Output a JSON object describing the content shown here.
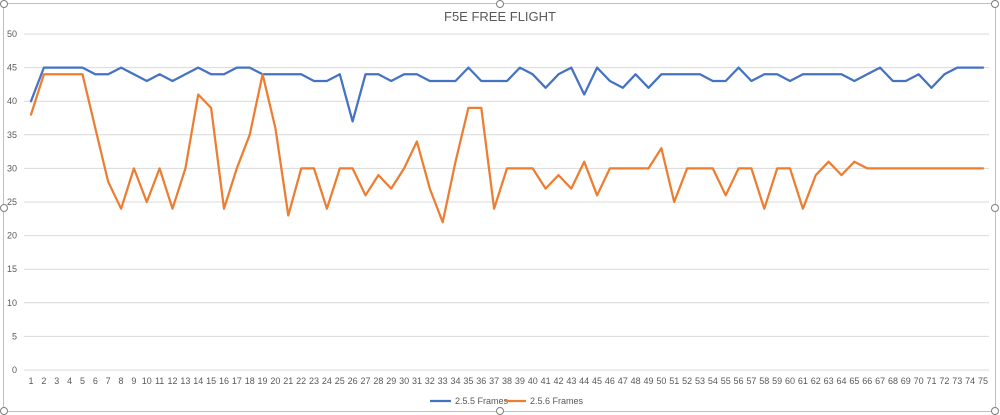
{
  "chart_data": {
    "type": "line",
    "title": "F5E FREE FLIGHT",
    "xlabel": "",
    "ylabel": "",
    "ylim": [
      0,
      50
    ],
    "yticks": [
      0,
      5,
      10,
      15,
      20,
      25,
      30,
      35,
      40,
      45,
      50
    ],
    "grid": true,
    "legend_position": "bottom",
    "x": [
      1,
      2,
      3,
      4,
      5,
      6,
      7,
      8,
      9,
      10,
      11,
      12,
      13,
      14,
      15,
      16,
      17,
      18,
      19,
      20,
      21,
      22,
      23,
      24,
      25,
      26,
      27,
      28,
      29,
      30,
      31,
      32,
      33,
      34,
      35,
      36,
      37,
      38,
      39,
      40,
      41,
      42,
      43,
      44,
      45,
      46,
      47,
      48,
      49,
      50,
      51,
      52,
      53,
      54,
      55,
      56,
      57,
      58,
      59,
      60,
      61,
      62,
      63,
      64,
      65,
      66,
      67,
      68,
      69,
      70,
      71,
      72,
      73,
      74,
      75
    ],
    "series": [
      {
        "name": "2.5.5 Frames",
        "color": "#4472c4",
        "values": [
          40,
          45,
          45,
          45,
          45,
          44,
          44,
          45,
          44,
          43,
          44,
          43,
          44,
          45,
          44,
          44,
          45,
          45,
          44,
          44,
          44,
          44,
          43,
          43,
          44,
          37,
          44,
          44,
          43,
          44,
          44,
          43,
          43,
          43,
          45,
          43,
          43,
          43,
          45,
          44,
          42,
          44,
          45,
          41,
          45,
          43,
          42,
          44,
          42,
          44,
          44,
          44,
          44,
          43,
          43,
          45,
          43,
          44,
          44,
          43,
          44,
          44,
          44,
          44,
          43,
          44,
          45,
          43,
          43,
          44,
          42,
          44,
          45,
          45,
          45
        ]
      },
      {
        "name": "2.5.6 Frames",
        "color": "#ed7d31",
        "values": [
          38,
          44,
          44,
          44,
          44,
          36,
          28,
          24,
          30,
          25,
          30,
          24,
          30,
          41,
          39,
          24,
          30,
          35,
          44,
          36,
          23,
          30,
          30,
          24,
          30,
          30,
          26,
          29,
          27,
          30,
          34,
          27,
          22,
          31,
          39,
          39,
          24,
          30,
          30,
          30,
          27,
          29,
          27,
          31,
          26,
          30,
          30,
          30,
          30,
          33,
          25,
          30,
          30,
          30,
          26,
          30,
          30,
          24,
          30,
          30,
          24,
          29,
          31,
          29,
          31,
          30,
          30,
          30,
          30,
          30,
          30,
          30,
          30,
          30,
          30
        ]
      }
    ]
  }
}
